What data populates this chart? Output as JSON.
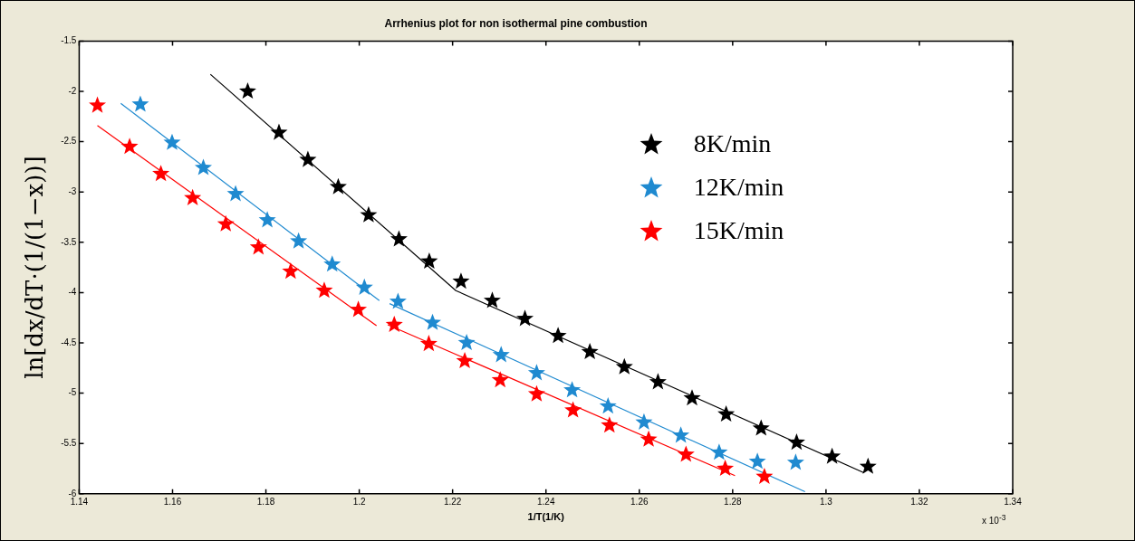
{
  "chart_data": {
    "type": "scatter",
    "title": "Arrhenius plot for non isothermal pine combustion",
    "xlabel": "1/T(1/K)",
    "ylabel": "ln[dx/dT·(1/(1−x))]",
    "annotations": [
      "x 10$^{-3}$"
    ],
    "xlim": [
      1.14,
      1.34
    ],
    "xticks": [
      1.14,
      1.16,
      1.18,
      1.2,
      1.22,
      1.24,
      1.26,
      1.28,
      1.3,
      1.32,
      1.34
    ],
    "ylim": [
      -6,
      -1.5
    ],
    "yticks": [
      -6,
      -5.5,
      -5,
      -4.5,
      -4,
      -3.5,
      -3,
      -2.5,
      -2,
      -1.5
    ],
    "grid": false,
    "legend": "top right",
    "marker": "star",
    "series": [
      {
        "name": "8K/min",
        "color": "#000000",
        "x": [
          1.1761,
          1.1828,
          1.189,
          1.1955,
          1.202,
          1.2085,
          1.215,
          1.2218,
          1.2285,
          1.2355,
          1.2426,
          1.2494,
          1.2568,
          1.264,
          1.2713,
          1.2786,
          1.2861,
          1.2937,
          1.3013,
          1.309
        ],
        "values": [
          -2.0,
          -2.41,
          -2.68,
          -2.95,
          -3.23,
          -3.47,
          -3.69,
          -3.89,
          -4.08,
          -4.26,
          -4.43,
          -4.59,
          -4.74,
          -4.89,
          -5.05,
          -5.21,
          -5.35,
          -5.49,
          -5.63,
          -5.73
        ]
      },
      {
        "name": "12K/min",
        "color": "#1f8ad0",
        "x": [
          1.1531,
          1.1599,
          1.1666,
          1.1735,
          1.1803,
          1.187,
          1.1942,
          1.2011,
          1.2083,
          1.2157,
          1.223,
          1.2304,
          1.238,
          1.2456,
          1.2533,
          1.261,
          1.2689,
          1.2771,
          1.2853,
          1.2935
        ],
        "values": [
          -2.13,
          -2.51,
          -2.76,
          -3.02,
          -3.28,
          -3.49,
          -3.72,
          -3.95,
          -4.09,
          -4.3,
          -4.5,
          -4.62,
          -4.8,
          -4.97,
          -5.13,
          -5.29,
          -5.42,
          -5.59,
          -5.68,
          -5.69
        ]
      },
      {
        "name": "15K/min",
        "color": "#ff0000",
        "x": [
          1.1439,
          1.1508,
          1.1575,
          1.1643,
          1.1714,
          1.1784,
          1.1853,
          1.1925,
          1.1998,
          1.2075,
          1.2149,
          1.2226,
          1.2302,
          1.238,
          1.2458,
          1.2536,
          1.262,
          1.27,
          1.2784,
          1.2868
        ],
        "values": [
          -2.14,
          -2.55,
          -2.82,
          -3.06,
          -3.32,
          -3.55,
          -3.79,
          -3.98,
          -4.17,
          -4.32,
          -4.51,
          -4.68,
          -4.87,
          -5.01,
          -5.17,
          -5.32,
          -5.46,
          -5.61,
          -5.75,
          -5.83
        ]
      },
      {
        "type": "line",
        "marker": "none",
        "color": "#000000",
        "x": [
          1.1681,
          1.2207,
          1.3081
        ],
        "values": [
          -1.83,
          -3.98,
          -5.79
        ]
      },
      {
        "type": "line",
        "marker": "none",
        "color": "#1f8ad0",
        "x": [
          1.1489,
          1.2043
        ],
        "values": [
          -2.12,
          -4.08
        ]
      },
      {
        "type": "line",
        "marker": "none",
        "color": "#1f8ad0",
        "x": [
          1.2065,
          1.2955
        ],
        "values": [
          -4.11,
          -5.98
        ]
      },
      {
        "type": "line",
        "marker": "none",
        "color": "#ff0000",
        "x": [
          1.1439,
          1.2037
        ],
        "values": [
          -2.34,
          -4.33
        ]
      },
      {
        "type": "line",
        "marker": "none",
        "color": "#ff0000",
        "x": [
          1.2061,
          1.2805
        ],
        "values": [
          -4.32,
          -5.82
        ]
      }
    ]
  }
}
